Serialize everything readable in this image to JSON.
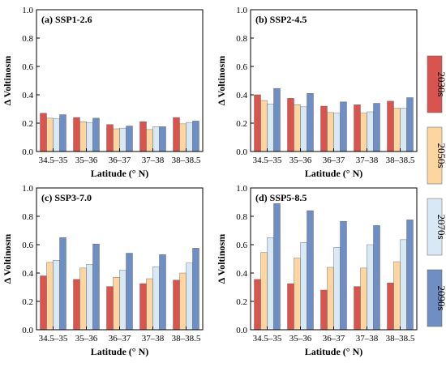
{
  "chart_data": [
    {
      "type": "bar",
      "panel": "(a) SSP1-2.6",
      "categories": [
        "34.5–35",
        "35–36",
        "36–37",
        "37–38",
        "38–38.5"
      ],
      "series": [
        {
          "name": "2030s",
          "values": [
            0.27,
            0.24,
            0.19,
            0.21,
            0.24
          ]
        },
        {
          "name": "2050s",
          "values": [
            0.235,
            0.21,
            0.16,
            0.155,
            0.195
          ]
        },
        {
          "name": "2070s",
          "values": [
            0.23,
            0.205,
            0.165,
            0.175,
            0.205
          ]
        },
        {
          "name": "2090s",
          "values": [
            0.26,
            0.235,
            0.18,
            0.175,
            0.215
          ]
        }
      ],
      "xlabel": "Latitude (° N)",
      "ylabel": "Δ Voltinosm",
      "ylim": [
        0,
        1.0
      ],
      "yticks": [
        "0.0",
        "0.2",
        "0.4",
        "0.6",
        "0.8",
        "1.0"
      ]
    },
    {
      "type": "bar",
      "panel": "(b) SSP2-4.5",
      "categories": [
        "34.5–35",
        "35–36",
        "36–37",
        "37–38",
        "38–38.5"
      ],
      "series": [
        {
          "name": "2030s",
          "values": [
            0.4,
            0.375,
            0.32,
            0.33,
            0.355
          ]
        },
        {
          "name": "2050s",
          "values": [
            0.36,
            0.33,
            0.275,
            0.27,
            0.305
          ]
        },
        {
          "name": "2070s",
          "values": [
            0.335,
            0.315,
            0.27,
            0.28,
            0.305
          ]
        },
        {
          "name": "2090s",
          "values": [
            0.445,
            0.41,
            0.35,
            0.34,
            0.38
          ]
        }
      ],
      "xlabel": "Latitude (° N)",
      "ylabel": "Δ Voltinosm",
      "ylim": [
        0,
        1.0
      ],
      "yticks": [
        "0.0",
        "0.2",
        "0.4",
        "0.6",
        "0.8",
        "1.0"
      ]
    },
    {
      "type": "bar",
      "panel": "(c) SSP3-7.0",
      "categories": [
        "34.5–35",
        "35–36",
        "36–37",
        "37–38",
        "38–38.5"
      ],
      "series": [
        {
          "name": "2030s",
          "values": [
            0.38,
            0.355,
            0.305,
            0.325,
            0.35
          ]
        },
        {
          "name": "2050s",
          "values": [
            0.475,
            0.435,
            0.37,
            0.36,
            0.4
          ]
        },
        {
          "name": "2070s",
          "values": [
            0.49,
            0.46,
            0.42,
            0.445,
            0.47
          ]
        },
        {
          "name": "2090s",
          "values": [
            0.65,
            0.605,
            0.54,
            0.53,
            0.575
          ]
        }
      ],
      "xlabel": "Latitude (° N)",
      "ylabel": "Δ Voltinosm",
      "ylim": [
        0,
        1.0
      ],
      "yticks": [
        "0.0",
        "0.2",
        "0.4",
        "0.6",
        "0.8",
        "1.0"
      ]
    },
    {
      "type": "bar",
      "panel": "(d) SSP5-8.5",
      "categories": [
        "34.5–35",
        "35–36",
        "36–37",
        "37–38",
        "38–38.5"
      ],
      "series": [
        {
          "name": "2030s",
          "values": [
            0.355,
            0.325,
            0.28,
            0.305,
            0.33
          ]
        },
        {
          "name": "2050s",
          "values": [
            0.545,
            0.505,
            0.44,
            0.435,
            0.48
          ]
        },
        {
          "name": "2070s",
          "values": [
            0.65,
            0.615,
            0.58,
            0.6,
            0.635
          ]
        },
        {
          "name": "2090s",
          "values": [
            0.89,
            0.84,
            0.765,
            0.735,
            0.775
          ]
        }
      ],
      "xlabel": "Latitude (° N)",
      "ylabel": "Δ Voltinosm",
      "ylim": [
        0,
        1.0
      ],
      "yticks": [
        "0.0",
        "0.2",
        "0.4",
        "0.6",
        "0.8",
        "1.0"
      ]
    }
  ],
  "legend": {
    "placement": "right",
    "items": [
      {
        "label": "2030s",
        "color": "#d9534f"
      },
      {
        "label": "2050s",
        "color": "#fdd5a0"
      },
      {
        "label": "2070s",
        "color": "#d9e8f5"
      },
      {
        "label": "2090s",
        "color": "#6f8fc4"
      }
    ]
  },
  "colors": {
    "series": [
      "#d9534f",
      "#fdd5a0",
      "#d9e8f5",
      "#6f8fc4"
    ],
    "bar_stroke": "#5a5a5a"
  }
}
